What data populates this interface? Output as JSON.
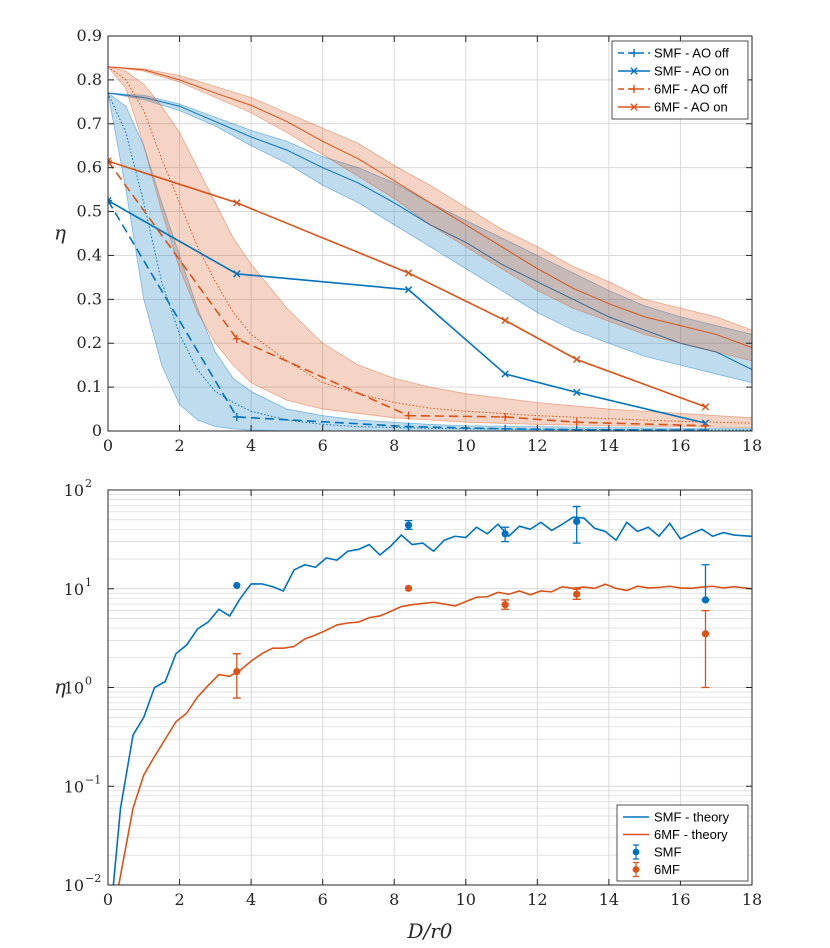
{
  "colors": {
    "smf": "#0072BD",
    "sixmf": "#D95319",
    "grid": "#d9d9d9",
    "axis": "#262626"
  },
  "chart_data": [
    {
      "type": "line",
      "id": "top",
      "xlabel": "",
      "ylabel": "η",
      "xlim": [
        0,
        18
      ],
      "ylim": [
        0,
        0.9
      ],
      "xticks": [
        0,
        2,
        4,
        6,
        8,
        10,
        12,
        14,
        16,
        18
      ],
      "xtick_labels": [
        "0",
        "2",
        "4",
        "6",
        "8",
        "10",
        "12",
        "14",
        "16",
        "18"
      ],
      "yticks": [
        0,
        0.1,
        0.2,
        0.3,
        0.4,
        0.5,
        0.6,
        0.7,
        0.8,
        0.9
      ],
      "ytick_labels": [
        "0",
        "0.1",
        "0.2",
        "0.3",
        "0.4",
        "0.5",
        "0.6",
        "0.7",
        "0.8",
        "0.9"
      ],
      "grid": true,
      "legend_position": "top-right",
      "legend": [
        {
          "label": "SMF - AO off",
          "color": "smf",
          "dash": true,
          "marker": "+"
        },
        {
          "label": "SMF - AO on",
          "color": "smf",
          "dash": false,
          "marker": "x"
        },
        {
          "label": "6MF - AO off",
          "color": "sixmf",
          "dash": true,
          "marker": "+"
        },
        {
          "label": "6MF - AO on",
          "color": "sixmf",
          "dash": false,
          "marker": "x"
        }
      ],
      "bands": [
        {
          "name": "SMF AO on simulated range",
          "color": "smf",
          "mean_dotted": false,
          "x": [
            0,
            1,
            2,
            3,
            4,
            5,
            6,
            7,
            8,
            9,
            10,
            11,
            12,
            13,
            14,
            15,
            16,
            17,
            18
          ],
          "lower": [
            0.77,
            0.755,
            0.73,
            0.695,
            0.65,
            0.61,
            0.56,
            0.52,
            0.47,
            0.42,
            0.37,
            0.32,
            0.27,
            0.23,
            0.2,
            0.17,
            0.15,
            0.13,
            0.11
          ],
          "upper": [
            0.77,
            0.765,
            0.745,
            0.715,
            0.685,
            0.66,
            0.625,
            0.6,
            0.565,
            0.52,
            0.48,
            0.44,
            0.4,
            0.36,
            0.32,
            0.285,
            0.26,
            0.24,
            0.22
          ],
          "mean": [
            0.77,
            0.76,
            0.74,
            0.705,
            0.67,
            0.64,
            0.6,
            0.565,
            0.52,
            0.47,
            0.43,
            0.38,
            0.34,
            0.3,
            0.26,
            0.23,
            0.2,
            0.18,
            0.14
          ]
        },
        {
          "name": "6MF AO on simulated range",
          "color": "sixmf",
          "mean_dotted": false,
          "x": [
            0,
            1,
            2,
            3,
            4,
            5,
            6,
            7,
            8,
            9,
            10,
            11,
            12,
            13,
            14,
            15,
            16,
            17,
            18
          ],
          "lower": [
            0.83,
            0.82,
            0.795,
            0.76,
            0.725,
            0.68,
            0.63,
            0.58,
            0.53,
            0.47,
            0.42,
            0.37,
            0.32,
            0.28,
            0.25,
            0.22,
            0.2,
            0.18,
            0.16
          ],
          "upper": [
            0.83,
            0.825,
            0.81,
            0.785,
            0.76,
            0.725,
            0.69,
            0.655,
            0.605,
            0.56,
            0.51,
            0.46,
            0.42,
            0.375,
            0.34,
            0.3,
            0.28,
            0.26,
            0.23
          ],
          "mean": [
            0.83,
            0.823,
            0.8,
            0.77,
            0.742,
            0.705,
            0.66,
            0.62,
            0.57,
            0.52,
            0.47,
            0.42,
            0.37,
            0.325,
            0.29,
            0.26,
            0.24,
            0.22,
            0.19
          ]
        },
        {
          "name": "SMF AO off simulated range",
          "color": "smf",
          "mean_dotted": true,
          "x": [
            0,
            0.5,
            1,
            1.5,
            2,
            2.5,
            3,
            3.5,
            4,
            5,
            6,
            7,
            8,
            9,
            10,
            12,
            14,
            16,
            18
          ],
          "lower": [
            0.77,
            0.55,
            0.3,
            0.15,
            0.06,
            0.025,
            0.01,
            0.005,
            0.002,
            0,
            0,
            0,
            0,
            0,
            0,
            0,
            0,
            0,
            0
          ],
          "upper": [
            0.77,
            0.74,
            0.65,
            0.52,
            0.4,
            0.28,
            0.18,
            0.12,
            0.09,
            0.05,
            0.035,
            0.025,
            0.02,
            0.015,
            0.012,
            0.01,
            0.008,
            0.006,
            0.005
          ],
          "mean": [
            0.77,
            0.68,
            0.52,
            0.34,
            0.22,
            0.14,
            0.09,
            0.065,
            0.045,
            0.025,
            0.015,
            0.01,
            0.008,
            0.006,
            0.005,
            0.004,
            0.003,
            0.002,
            0.002
          ]
        },
        {
          "name": "6MF AO off simulated range",
          "color": "sixmf",
          "mean_dotted": true,
          "x": [
            0,
            0.5,
            1,
            1.5,
            2,
            2.5,
            3,
            3.5,
            4,
            5,
            6,
            7,
            8,
            9,
            10,
            12,
            14,
            16,
            18
          ],
          "lower": [
            0.83,
            0.78,
            0.65,
            0.5,
            0.37,
            0.27,
            0.2,
            0.15,
            0.11,
            0.07,
            0.05,
            0.04,
            0.03,
            0.025,
            0.02,
            0.015,
            0.012,
            0.01,
            0.008
          ],
          "upper": [
            0.83,
            0.82,
            0.79,
            0.74,
            0.68,
            0.6,
            0.52,
            0.44,
            0.38,
            0.28,
            0.2,
            0.15,
            0.12,
            0.1,
            0.085,
            0.065,
            0.05,
            0.04,
            0.03
          ],
          "mean": [
            0.83,
            0.8,
            0.73,
            0.62,
            0.52,
            0.42,
            0.34,
            0.27,
            0.22,
            0.16,
            0.11,
            0.085,
            0.065,
            0.052,
            0.045,
            0.035,
            0.028,
            0.022,
            0.018
          ]
        }
      ],
      "series": [
        {
          "name": "SMF - AO off",
          "color": "smf",
          "dash": true,
          "marker": "+",
          "x": [
            0,
            3.6,
            8.4,
            11.1,
            13.1,
            16.7
          ],
          "y": [
            0.525,
            0.032,
            0.01,
            0.005,
            0.003,
            0.002
          ]
        },
        {
          "name": "SMF - AO on",
          "color": "smf",
          "dash": false,
          "marker": "x",
          "x": [
            0,
            3.6,
            8.4,
            11.1,
            13.1,
            16.7
          ],
          "y": [
            0.525,
            0.358,
            0.322,
            0.13,
            0.088,
            0.018
          ]
        },
        {
          "name": "6MF - AO off",
          "color": "sixmf",
          "dash": true,
          "marker": "+",
          "x": [
            0,
            3.6,
            8.4,
            11.1,
            13.1,
            16.7
          ],
          "y": [
            0.615,
            0.21,
            0.035,
            0.032,
            0.02,
            0.012
          ]
        },
        {
          "name": "6MF - AO on",
          "color": "sixmf",
          "dash": false,
          "marker": "x",
          "x": [
            0,
            3.6,
            8.4,
            11.1,
            13.1,
            16.7
          ],
          "y": [
            0.615,
            0.52,
            0.36,
            0.252,
            0.163,
            0.055
          ]
        }
      ]
    },
    {
      "type": "line",
      "id": "bottom",
      "xlabel": "D/r0",
      "ylabel": "η",
      "xscale": "linear",
      "yscale": "log",
      "xlim": [
        0,
        18
      ],
      "ylim": [
        0.01,
        100
      ],
      "xticks": [
        0,
        2,
        4,
        6,
        8,
        10,
        12,
        14,
        16,
        18
      ],
      "xtick_labels": [
        "0",
        "2",
        "4",
        "6",
        "8",
        "10",
        "12",
        "14",
        "16",
        "18"
      ],
      "yticks": [
        0.01,
        0.1,
        1,
        10,
        100
      ],
      "ytick_labels": [
        "10",
        "10",
        "10",
        "10",
        "10"
      ],
      "ytick_exponents": [
        "−2",
        "−1",
        "0",
        "1",
        "2"
      ],
      "grid": true,
      "legend_position": "bottom-right",
      "legend": [
        {
          "label": "SMF - theory",
          "color": "smf",
          "kind": "line"
        },
        {
          "label": "6MF - theory",
          "color": "sixmf",
          "kind": "line"
        },
        {
          "label": "SMF",
          "color": "smf",
          "kind": "errorbar"
        },
        {
          "label": "6MF",
          "color": "sixmf",
          "kind": "errorbar"
        }
      ],
      "series": [
        {
          "name": "SMF - theory",
          "color": "smf",
          "kind": "line",
          "x": [
            0.15,
            0.35,
            0.7,
            1,
            1.3,
            1.6,
            1.9,
            2.2,
            2.5,
            2.8,
            3.1,
            3.4,
            3.7,
            4,
            4.3,
            4.6,
            4.9,
            5.2,
            5.5,
            5.8,
            6.1,
            6.4,
            6.7,
            7,
            7.3,
            7.6,
            7.9,
            8.2,
            8.5,
            8.8,
            9.1,
            9.4,
            9.7,
            10,
            10.3,
            10.6,
            10.9,
            11.2,
            11.5,
            11.8,
            12.1,
            12.4,
            12.7,
            13,
            13.3,
            13.6,
            13.9,
            14.2,
            14.5,
            14.8,
            15.1,
            15.4,
            15.7,
            16,
            16.3,
            16.6,
            16.9,
            17.2,
            17.5,
            18
          ],
          "y": [
            0.01,
            0.06,
            0.33,
            0.5,
            1.0,
            1.15,
            2.2,
            2.7,
            3.9,
            4.6,
            6.2,
            5.3,
            8.0,
            11.2,
            11.2,
            10.5,
            9.5,
            15.5,
            17.5,
            16.5,
            20.5,
            19.5,
            24,
            25,
            28,
            22,
            27,
            35,
            28,
            29,
            24,
            31,
            34,
            33,
            42,
            36,
            45,
            34,
            43,
            40,
            47,
            39,
            45,
            53,
            52,
            41,
            38,
            31,
            47,
            38,
            42,
            34,
            46,
            32,
            36,
            40,
            34,
            37,
            35,
            34
          ]
        },
        {
          "name": "6MF - theory",
          "color": "sixmf",
          "kind": "line",
          "x": [
            0.3,
            0.7,
            1,
            1.3,
            1.6,
            1.9,
            2.2,
            2.5,
            2.8,
            3.1,
            3.4,
            3.7,
            4,
            4.3,
            4.6,
            4.9,
            5.2,
            5.5,
            5.8,
            6.1,
            6.4,
            6.7,
            7,
            7.3,
            7.6,
            7.9,
            8.2,
            8.5,
            8.8,
            9.1,
            9.4,
            9.7,
            10,
            10.3,
            10.6,
            10.9,
            11.2,
            11.5,
            11.8,
            12.1,
            12.4,
            12.7,
            13,
            13.3,
            13.6,
            13.9,
            14.2,
            14.5,
            14.8,
            15.1,
            15.4,
            15.7,
            16,
            16.3,
            16.6,
            16.9,
            17.2,
            17.5,
            18
          ],
          "y": [
            0.01,
            0.06,
            0.13,
            0.2,
            0.3,
            0.45,
            0.55,
            0.8,
            1.05,
            1.35,
            1.3,
            1.5,
            1.85,
            2.2,
            2.5,
            2.5,
            2.6,
            3.1,
            3.4,
            3.8,
            4.3,
            4.5,
            4.6,
            5.1,
            5.3,
            5.9,
            6.6,
            6.9,
            7.1,
            7.3,
            7.0,
            6.7,
            7.4,
            8.2,
            8.3,
            9.2,
            8.8,
            9.5,
            8.7,
            9.5,
            9.3,
            10.5,
            10.1,
            10.4,
            10.1,
            11.1,
            10.1,
            9.6,
            10.6,
            10.2,
            10.3,
            10.6,
            10.2,
            10.1,
            10.4,
            10.6,
            10.2,
            10.5,
            10.0
          ]
        },
        {
          "name": "SMF",
          "color": "smf",
          "kind": "errorbar",
          "x": [
            3.6,
            8.4,
            11.1,
            13.1,
            16.7
          ],
          "y": [
            10.8,
            44,
            36,
            48,
            7.7
          ],
          "ylow": [
            10.8,
            40,
            30,
            29,
            7.7
          ],
          "yhigh": [
            10.8,
            49,
            42,
            68,
            17.5
          ]
        },
        {
          "name": "6MF",
          "color": "sixmf",
          "kind": "errorbar",
          "x": [
            3.6,
            8.4,
            11.1,
            13.1,
            16.7
          ],
          "y": [
            1.45,
            10.1,
            6.9,
            8.8,
            3.5
          ],
          "ylow": [
            0.78,
            10.1,
            6.2,
            7.8,
            1.0
          ],
          "yhigh": [
            2.2,
            10.1,
            7.7,
            9.9,
            6.0
          ]
        }
      ]
    }
  ]
}
